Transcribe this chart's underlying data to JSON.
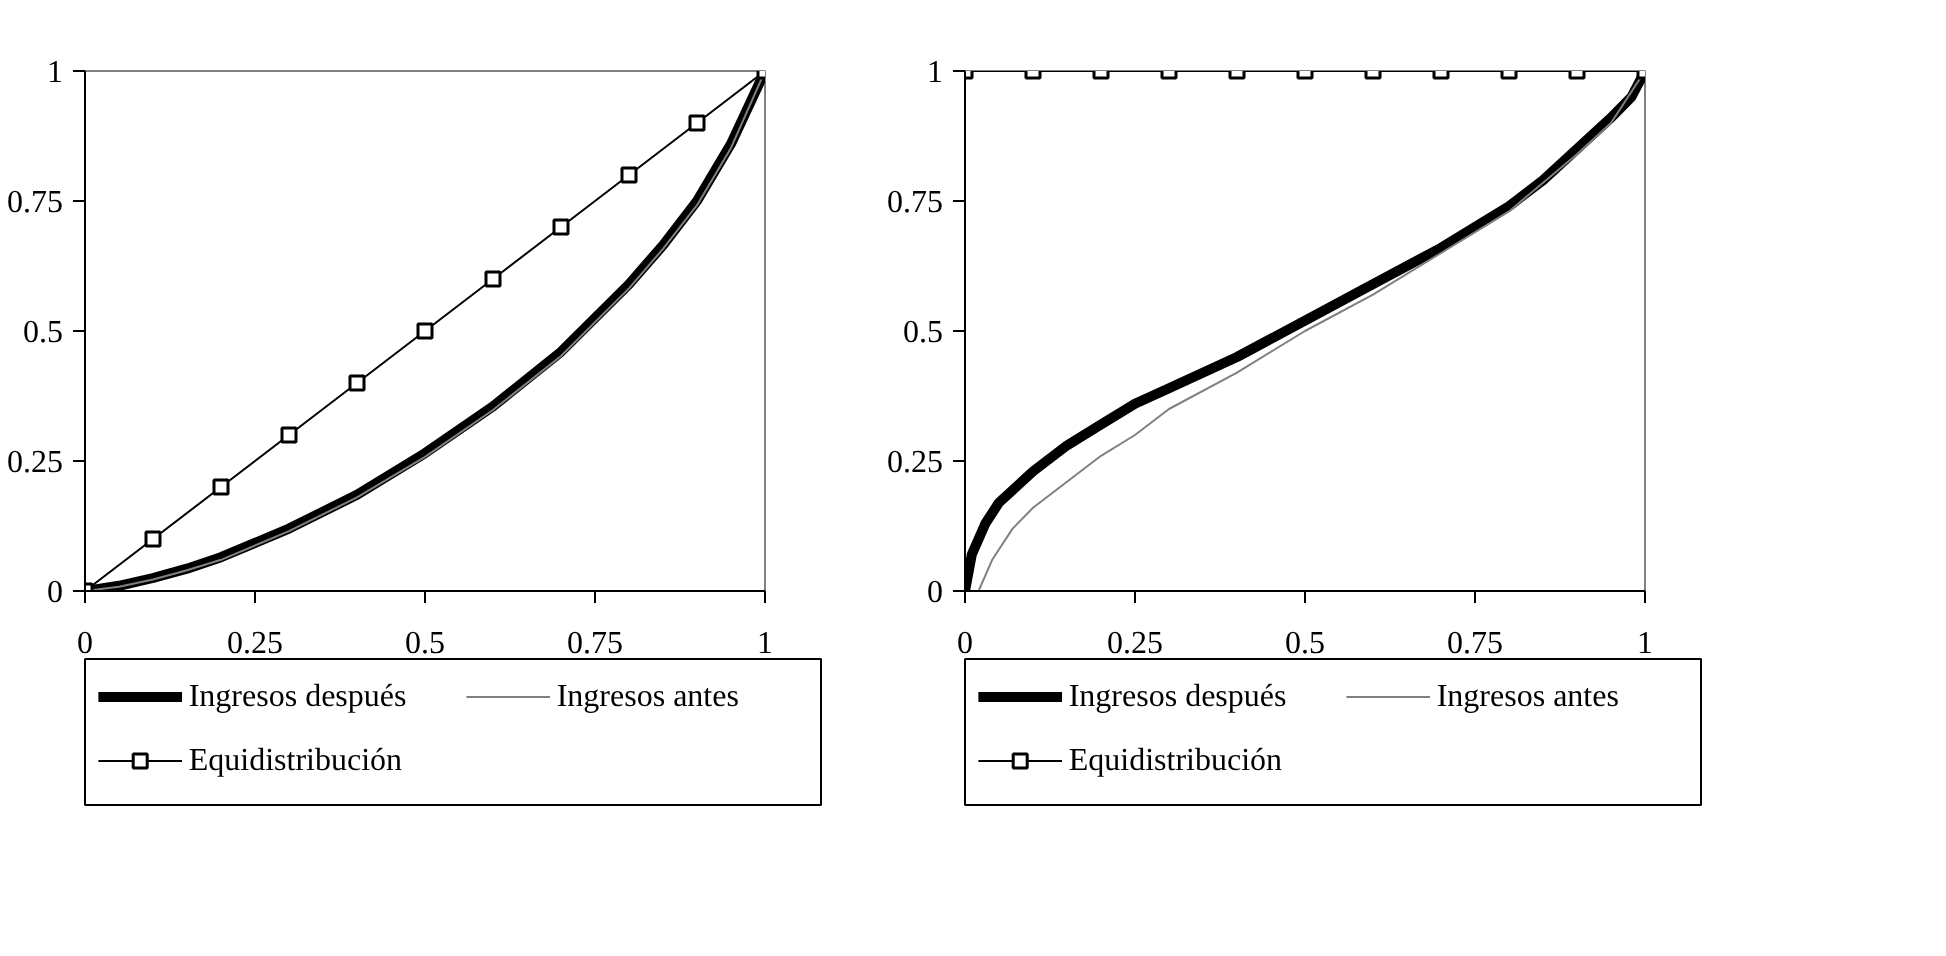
{
  "chart_data": [
    {
      "type": "line",
      "xlim": [
        0,
        1
      ],
      "ylim": [
        0,
        1
      ],
      "xticks": [
        0,
        0.25,
        0.5,
        0.75,
        1
      ],
      "yticks": [
        0,
        0.25,
        0.5,
        0.75,
        1
      ],
      "grid": false,
      "legend": "bottom",
      "line_style": "solid",
      "series": [
        {
          "name": "Ingresos después",
          "color": "#000000",
          "marker": "none",
          "x": [
            0,
            0.05,
            0.1,
            0.15,
            0.2,
            0.3,
            0.4,
            0.5,
            0.6,
            0.7,
            0.8,
            0.85,
            0.9,
            0.95,
            1
          ],
          "values": [
            0,
            0.01,
            0.025,
            0.043,
            0.065,
            0.12,
            0.185,
            0.265,
            0.355,
            0.46,
            0.59,
            0.665,
            0.75,
            0.86,
            1
          ]
        },
        {
          "name": "Ingresos antes",
          "color": "#808080",
          "marker": "none",
          "x": [
            0,
            0.05,
            0.1,
            0.15,
            0.2,
            0.3,
            0.4,
            0.5,
            0.6,
            0.7,
            0.8,
            0.85,
            0.9,
            0.95,
            1
          ],
          "values": [
            0,
            0.008,
            0.022,
            0.04,
            0.06,
            0.115,
            0.18,
            0.258,
            0.348,
            0.452,
            0.582,
            0.658,
            0.742,
            0.852,
            1
          ]
        },
        {
          "name": "Equidistribución",
          "color": "#000000",
          "marker": "square",
          "x": [
            0,
            0.1,
            0.2,
            0.3,
            0.4,
            0.5,
            0.6,
            0.7,
            0.8,
            0.9,
            1
          ],
          "values": [
            0,
            0.1,
            0.2,
            0.3,
            0.4,
            0.5,
            0.6,
            0.7,
            0.8,
            0.9,
            1
          ]
        }
      ]
    },
    {
      "type": "line",
      "xlim": [
        0,
        1
      ],
      "ylim": [
        0,
        1
      ],
      "xticks": [
        0,
        0.25,
        0.5,
        0.75,
        1
      ],
      "yticks": [
        0,
        0.25,
        0.5,
        0.75,
        1
      ],
      "grid": false,
      "legend": "bottom",
      "line_style": "solid",
      "series": [
        {
          "name": "Ingresos después",
          "color": "#000000",
          "marker": "none",
          "x": [
            0,
            0.01,
            0.03,
            0.05,
            0.1,
            0.15,
            0.2,
            0.25,
            0.3,
            0.4,
            0.5,
            0.6,
            0.7,
            0.8,
            0.85,
            0.9,
            0.95,
            0.98,
            1
          ],
          "values": [
            0,
            0.07,
            0.13,
            0.17,
            0.23,
            0.28,
            0.32,
            0.36,
            0.39,
            0.45,
            0.52,
            0.59,
            0.66,
            0.74,
            0.79,
            0.85,
            0.91,
            0.95,
            1
          ]
        },
        {
          "name": "Ingresos antes",
          "color": "#808080",
          "marker": "none",
          "x": [
            0,
            0.02,
            0.04,
            0.07,
            0.1,
            0.15,
            0.2,
            0.25,
            0.3,
            0.4,
            0.5,
            0.6,
            0.7,
            0.8,
            0.9,
            0.95,
            1
          ],
          "values": [
            0,
            0,
            0.06,
            0.12,
            0.16,
            0.21,
            0.26,
            0.3,
            0.35,
            0.42,
            0.5,
            0.57,
            0.65,
            0.73,
            0.84,
            0.9,
            1
          ]
        },
        {
          "name": "Equidistribución",
          "color": "#000000",
          "marker": "square",
          "x": [
            0,
            0.1,
            0.2,
            0.3,
            0.4,
            0.5,
            0.6,
            0.7,
            0.8,
            0.9,
            1
          ],
          "values": [
            1,
            1,
            1,
            1,
            1,
            1,
            1,
            1,
            1,
            1,
            1
          ]
        }
      ]
    }
  ]
}
